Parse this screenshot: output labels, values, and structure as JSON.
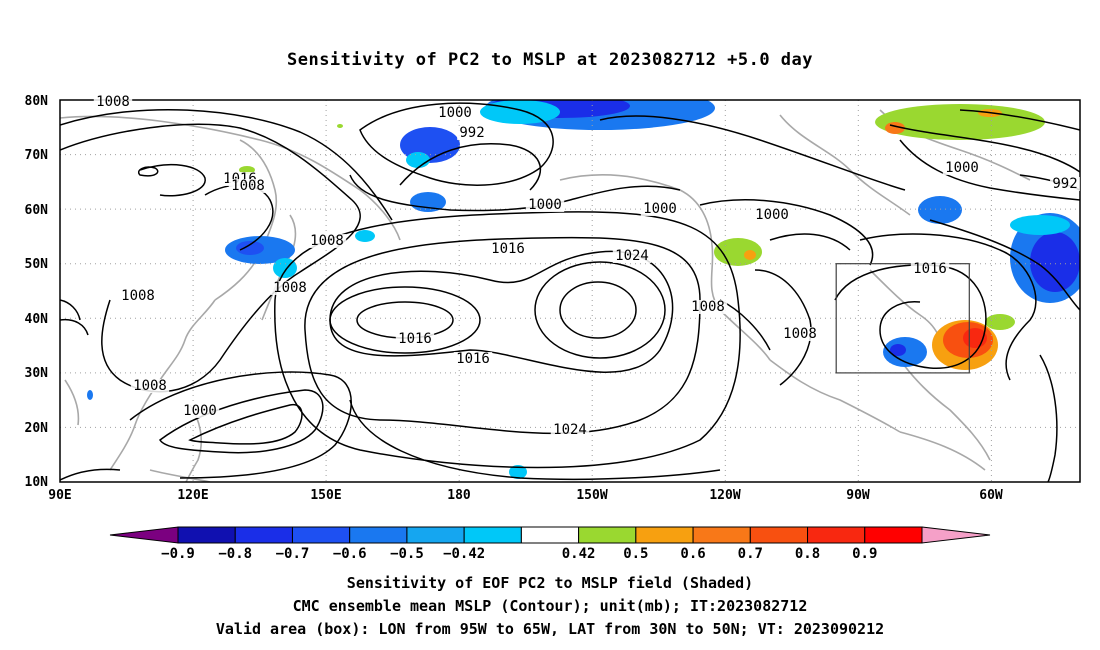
{
  "title": "Sensitivity of PC2 to MSLP at 2023082712 +5.0 day",
  "lat_labels": [
    "80N",
    "70N",
    "60N",
    "50N",
    "40N",
    "30N",
    "20N",
    "10N"
  ],
  "lon_labels": [
    "90E",
    "120E",
    "150E",
    "180",
    "150W",
    "120W",
    "90W",
    "60W"
  ],
  "contour_labels": [
    "1008",
    "1000",
    "992",
    "1016",
    "1008",
    "1000",
    "1000",
    "1008",
    "1000",
    "1016",
    "1008",
    "1024",
    "1008",
    "1016",
    "1008",
    "1000",
    "1016",
    "1016",
    "1024",
    "1008",
    "1008",
    "1000",
    "992"
  ],
  "colorbar": {
    "colors": [
      "#7b0080",
      "#1010b0",
      "#1a2ee8",
      "#1e50f2",
      "#1a78f0",
      "#15a6f0",
      "#00c8f8",
      "#ffffff",
      "#9ad830",
      "#f7a010",
      "#f87818",
      "#f85010",
      "#f82810",
      "#ff0000",
      "#f5a0c8"
    ],
    "labels": [
      "−0.9",
      "−0.8",
      "−0.7",
      "−0.6",
      "−0.5",
      "−0.42",
      "0.42",
      "0.5",
      "0.6",
      "0.7",
      "0.8",
      "0.9"
    ]
  },
  "valid_box": {
    "lon_west": -95,
    "lon_east": -65,
    "lat_south": 30,
    "lat_north": 50
  },
  "captions": [
    "Sensitivity of EOF PC2 to MSLP field (Shaded)",
    "CMC ensemble mean MSLP (Contour); unit(mb); IT:2023082712",
    "Valid area (box): LON from 95W to 65W, LAT from 30N to 50N; VT: 2023090212"
  ]
}
